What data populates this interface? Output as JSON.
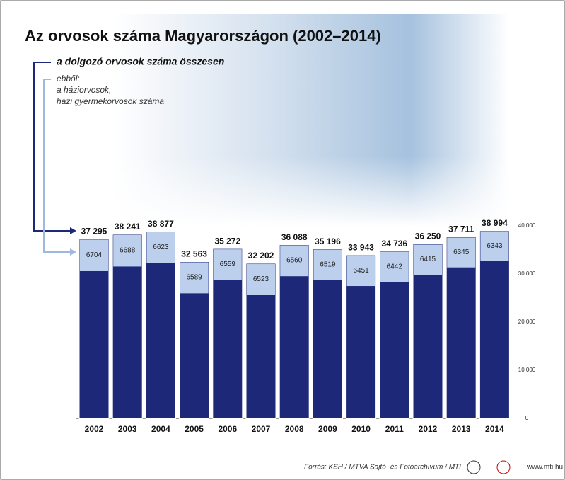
{
  "chart_data": {
    "type": "bar",
    "title": "Az orvosok száma Magyarországon (2002–2014)",
    "annotations": {
      "total": "a dolgozó orvosok száma összesen",
      "of_which": "ebből:",
      "gp_1": "a háziorvosok,",
      "gp_2": "házi gyermekorvosok száma"
    },
    "source": "Forrás: KSH / MTVA Sajtó- és Fotóarchívum / MTI",
    "website": "www.mti.hu",
    "categories": [
      "2002",
      "2003",
      "2004",
      "2005",
      "2006",
      "2007",
      "2008",
      "2009",
      "2010",
      "2011",
      "2012",
      "2013",
      "2014"
    ],
    "series": [
      {
        "name": "a dolgozó orvosok száma összesen",
        "color": "#1e2878",
        "values": [
          37295,
          38241,
          38877,
          32563,
          35272,
          32202,
          36088,
          35196,
          33943,
          34736,
          36250,
          37711,
          38994
        ],
        "value_labels": [
          "37 295",
          "38 241",
          "38 877",
          "32 563",
          "35 272",
          "32 202",
          "36 088",
          "35 196",
          "33 943",
          "34 736",
          "36 250",
          "37 711",
          "38 994"
        ]
      },
      {
        "name": "a háziorvosok, házi gyermekorvosok száma",
        "color": "#bcd0ee",
        "values": [
          6704,
          6688,
          6623,
          6589,
          6559,
          6523,
          6560,
          6519,
          6451,
          6442,
          6415,
          6345,
          6343
        ]
      }
    ],
    "ylim": [
      0,
      40000
    ],
    "yticks": [
      0,
      {
        "value": 10000,
        "label": "10 000"
      },
      {
        "value": 20000,
        "label": "20 000"
      },
      {
        "value": 30000,
        "label": "30 000"
      },
      {
        "value": 40000,
        "label": "40 000"
      }
    ]
  }
}
